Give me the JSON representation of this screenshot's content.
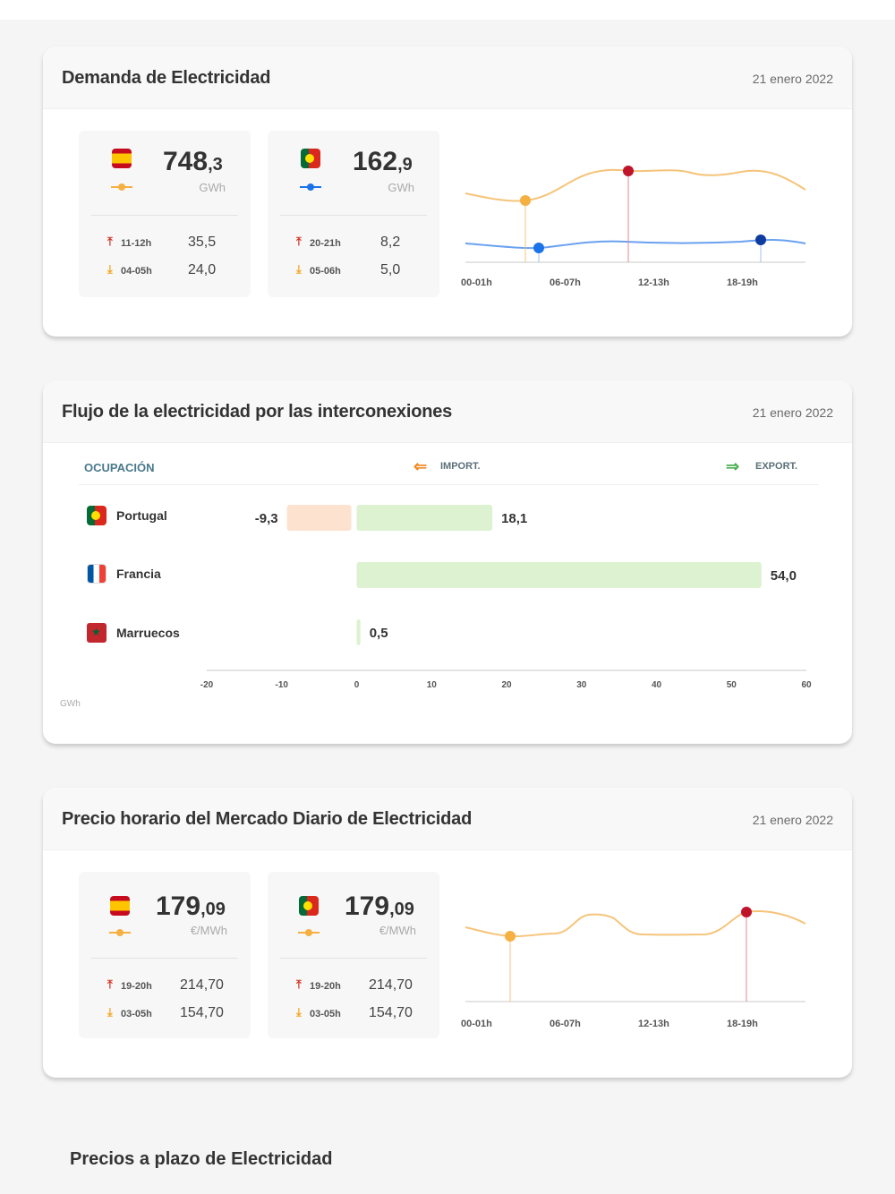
{
  "demand": {
    "title": "Demanda de Electricidad",
    "date": "21 enero 2022",
    "spain": {
      "value_int": "748",
      "value_dec": ",3",
      "unit": "GWh",
      "max_hour": "11-12h",
      "max_value": "35,5",
      "min_hour": "04-05h",
      "min_value": "24,0"
    },
    "portugal": {
      "value_int": "162",
      "value_dec": ",9",
      "unit": "GWh",
      "max_hour": "20-21h",
      "max_value": "8,2",
      "min_hour": "05-06h",
      "min_value": "5,0"
    },
    "chart_x_labels": [
      "00-01h",
      "06-07h",
      "12-13h",
      "18-19h"
    ]
  },
  "flow": {
    "title": "Flujo de la electricidad por las interconexiones",
    "date": "21 enero 2022",
    "col_occupation": "OCUPACIÓN",
    "col_import": "IMPORT.",
    "col_export": "EXPORT.",
    "unit": "GWh",
    "axis_ticks": [
      "-20",
      "-10",
      "0",
      "10",
      "20",
      "30",
      "40",
      "50",
      "60"
    ],
    "countries": [
      {
        "name": "Portugal",
        "import_label": "-9,3",
        "export_label": "18,1"
      },
      {
        "name": "Francia",
        "import_label": "",
        "export_label": "54,0"
      },
      {
        "name": "Marruecos",
        "import_label": "",
        "export_label": "0,5"
      }
    ]
  },
  "price": {
    "title": "Precio horario del Mercado Diario de Electricidad",
    "date": "21 enero 2022",
    "spain": {
      "value_int": "179",
      "value_dec": ",09",
      "unit": "€/MWh",
      "max_hour": "19-20h",
      "max_value": "214,70",
      "min_hour": "03-05h",
      "min_value": "154,70"
    },
    "portugal": {
      "value_int": "179",
      "value_dec": ",09",
      "unit": "€/MWh",
      "max_hour": "19-20h",
      "max_value": "214,70",
      "min_hour": "03-05h",
      "min_value": "154,70"
    },
    "chart_x_labels": [
      "00-01h",
      "06-07h",
      "12-13h",
      "18-19h"
    ]
  },
  "forward": {
    "title": "Precios a plazo de Electricidad"
  },
  "colors": {
    "spain_series": "#f5b041",
    "portugal_series": "#1a73e8",
    "max_marker": "#c0142b",
    "import_bar": "#fde3cf",
    "export_bar": "#dcf2d0",
    "import_icon": "#f08a24",
    "export_icon": "#4caf50"
  },
  "chart_data": [
    {
      "type": "bar",
      "categories": [
        "Portugal",
        "Francia",
        "Marruecos"
      ],
      "series": [
        {
          "name": "IMPORT.",
          "values": [
            -9.3,
            0,
            0
          ]
        },
        {
          "name": "EXPORT.",
          "values": [
            18.1,
            54.0,
            0.5
          ]
        }
      ],
      "xlabel": "GWh",
      "xlim": [
        -20,
        60
      ],
      "orientation": "horizontal"
    }
  ]
}
